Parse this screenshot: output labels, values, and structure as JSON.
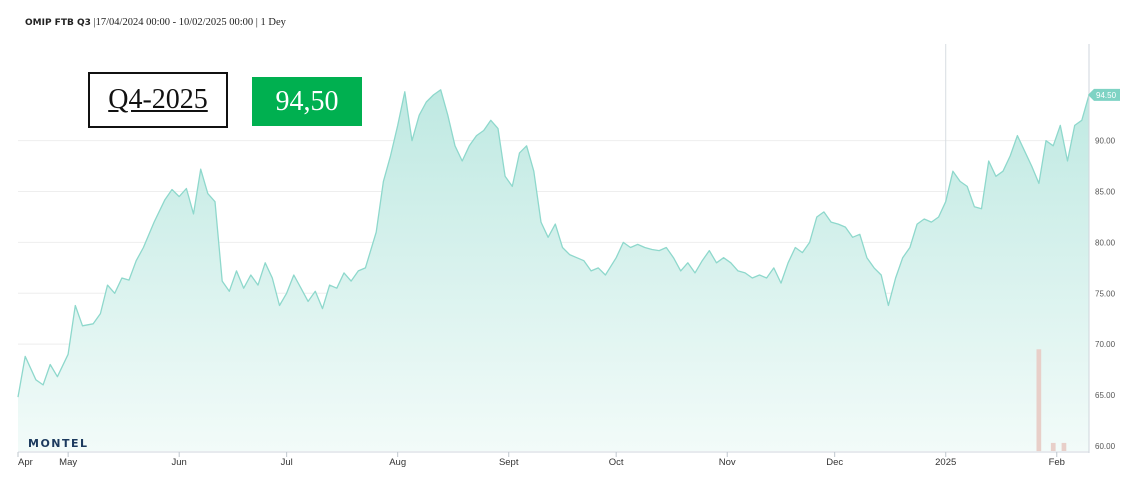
{
  "header": {
    "series": "OMIP FTB Q3",
    "range": "17/04/2024 00:00 - 10/02/2025 00:00",
    "interval": "1 Dey"
  },
  "overlay": {
    "contract": "Q4-2025",
    "price": "94,50"
  },
  "brand": "MONTEL",
  "colors": {
    "line": "#8ed8cc",
    "fill_top": "#bfe9e2",
    "fill_bottom": "#f2fbf9",
    "price_box": "#00b050",
    "last_label": "#7fd3c4",
    "volume_bars": "#e8cfc9"
  },
  "chart_data": {
    "type": "area",
    "title": "",
    "xlabel": "",
    "ylabel": "",
    "ylim": [
      59.5,
      99.5
    ],
    "y_ticks": [
      60,
      65,
      70,
      75,
      80,
      85,
      90
    ],
    "y_tick_labels": [
      "60.00",
      "65.00",
      "70.00",
      "75.00",
      "80.00",
      "85.00",
      "90.00"
    ],
    "x_range": [
      "2024-04-17",
      "2025-02-10"
    ],
    "x_ticks": [
      {
        "date": "2024-04-17",
        "label": "Apr"
      },
      {
        "date": "2024-05-01",
        "label": "May"
      },
      {
        "date": "2024-06-01",
        "label": "Jun"
      },
      {
        "date": "2024-07-01",
        "label": "Jul"
      },
      {
        "date": "2024-08-01",
        "label": "Aug"
      },
      {
        "date": "2024-09-01",
        "label": "Sept"
      },
      {
        "date": "2024-10-01",
        "label": "Oct"
      },
      {
        "date": "2024-11-01",
        "label": "Nov"
      },
      {
        "date": "2024-12-01",
        "label": "Dec"
      },
      {
        "date": "2025-01-01",
        "label": "2025"
      },
      {
        "date": "2025-02-01",
        "label": "Feb"
      }
    ],
    "grid": "horizontal",
    "last_value_label": "94.50",
    "series": [
      {
        "values": [
          [
            "2024-04-17",
            64.8
          ],
          [
            "2024-04-19",
            68.8
          ],
          [
            "2024-04-22",
            66.5
          ],
          [
            "2024-04-24",
            66.0
          ],
          [
            "2024-04-26",
            68.0
          ],
          [
            "2024-04-28",
            66.8
          ],
          [
            "2024-05-01",
            69.0
          ],
          [
            "2024-05-03",
            73.8
          ],
          [
            "2024-05-05",
            71.8
          ],
          [
            "2024-05-08",
            72.0
          ],
          [
            "2024-05-10",
            73.0
          ],
          [
            "2024-05-12",
            75.8
          ],
          [
            "2024-05-14",
            75.0
          ],
          [
            "2024-05-16",
            76.5
          ],
          [
            "2024-05-18",
            76.3
          ],
          [
            "2024-05-20",
            78.2
          ],
          [
            "2024-05-22",
            79.5
          ],
          [
            "2024-05-25",
            82.0
          ],
          [
            "2024-05-28",
            84.2
          ],
          [
            "2024-05-30",
            85.2
          ],
          [
            "2024-06-01",
            84.5
          ],
          [
            "2024-06-03",
            85.3
          ],
          [
            "2024-06-05",
            82.8
          ],
          [
            "2024-06-07",
            87.2
          ],
          [
            "2024-06-09",
            84.8
          ],
          [
            "2024-06-11",
            84.0
          ],
          [
            "2024-06-13",
            76.2
          ],
          [
            "2024-06-15",
            75.2
          ],
          [
            "2024-06-17",
            77.2
          ],
          [
            "2024-06-19",
            75.5
          ],
          [
            "2024-06-21",
            76.8
          ],
          [
            "2024-06-23",
            75.8
          ],
          [
            "2024-06-25",
            78.0
          ],
          [
            "2024-06-27",
            76.5
          ],
          [
            "2024-06-29",
            73.8
          ],
          [
            "2024-07-01",
            75.0
          ],
          [
            "2024-07-03",
            76.8
          ],
          [
            "2024-07-05",
            75.5
          ],
          [
            "2024-07-07",
            74.2
          ],
          [
            "2024-07-09",
            75.2
          ],
          [
            "2024-07-11",
            73.5
          ],
          [
            "2024-07-13",
            75.8
          ],
          [
            "2024-07-15",
            75.5
          ],
          [
            "2024-07-17",
            77.0
          ],
          [
            "2024-07-19",
            76.2
          ],
          [
            "2024-07-21",
            77.2
          ],
          [
            "2024-07-23",
            77.5
          ],
          [
            "2024-07-26",
            81.0
          ],
          [
            "2024-07-28",
            86.0
          ],
          [
            "2024-07-30",
            88.5
          ],
          [
            "2024-08-01",
            91.5
          ],
          [
            "2024-08-03",
            94.8
          ],
          [
            "2024-08-05",
            90.0
          ],
          [
            "2024-08-07",
            92.5
          ],
          [
            "2024-08-09",
            93.8
          ],
          [
            "2024-08-11",
            94.5
          ],
          [
            "2024-08-13",
            95.0
          ],
          [
            "2024-08-15",
            92.5
          ],
          [
            "2024-08-17",
            89.5
          ],
          [
            "2024-08-19",
            88.0
          ],
          [
            "2024-08-21",
            89.5
          ],
          [
            "2024-08-23",
            90.5
          ],
          [
            "2024-08-25",
            91.0
          ],
          [
            "2024-08-27",
            92.0
          ],
          [
            "2024-08-29",
            91.2
          ],
          [
            "2024-08-31",
            86.5
          ],
          [
            "2024-09-02",
            85.5
          ],
          [
            "2024-09-04",
            88.8
          ],
          [
            "2024-09-06",
            89.5
          ],
          [
            "2024-09-08",
            87.0
          ],
          [
            "2024-09-10",
            82.0
          ],
          [
            "2024-09-12",
            80.5
          ],
          [
            "2024-09-14",
            81.8
          ],
          [
            "2024-09-16",
            79.5
          ],
          [
            "2024-09-18",
            78.8
          ],
          [
            "2024-09-20",
            78.5
          ],
          [
            "2024-09-22",
            78.2
          ],
          [
            "2024-09-24",
            77.2
          ],
          [
            "2024-09-26",
            77.5
          ],
          [
            "2024-09-28",
            76.8
          ],
          [
            "2024-10-01",
            78.5
          ],
          [
            "2024-10-03",
            80.0
          ],
          [
            "2024-10-05",
            79.5
          ],
          [
            "2024-10-07",
            79.8
          ],
          [
            "2024-10-09",
            79.5
          ],
          [
            "2024-10-11",
            79.3
          ],
          [
            "2024-10-13",
            79.2
          ],
          [
            "2024-10-15",
            79.5
          ],
          [
            "2024-10-17",
            78.5
          ],
          [
            "2024-10-19",
            77.2
          ],
          [
            "2024-10-21",
            78.0
          ],
          [
            "2024-10-23",
            77.0
          ],
          [
            "2024-10-25",
            78.2
          ],
          [
            "2024-10-27",
            79.2
          ],
          [
            "2024-10-29",
            78.0
          ],
          [
            "2024-10-31",
            78.5
          ],
          [
            "2024-11-02",
            78.0
          ],
          [
            "2024-11-04",
            77.2
          ],
          [
            "2024-11-06",
            77.0
          ],
          [
            "2024-11-08",
            76.5
          ],
          [
            "2024-11-10",
            76.8
          ],
          [
            "2024-11-12",
            76.5
          ],
          [
            "2024-11-14",
            77.5
          ],
          [
            "2024-11-16",
            76.0
          ],
          [
            "2024-11-18",
            78.0
          ],
          [
            "2024-11-20",
            79.5
          ],
          [
            "2024-11-22",
            79.0
          ],
          [
            "2024-11-24",
            80.0
          ],
          [
            "2024-11-26",
            82.5
          ],
          [
            "2024-11-28",
            83.0
          ],
          [
            "2024-11-30",
            82.0
          ],
          [
            "2024-12-02",
            81.8
          ],
          [
            "2024-12-04",
            81.5
          ],
          [
            "2024-12-06",
            80.5
          ],
          [
            "2024-12-08",
            80.8
          ],
          [
            "2024-12-10",
            78.5
          ],
          [
            "2024-12-12",
            77.5
          ],
          [
            "2024-12-14",
            76.8
          ],
          [
            "2024-12-16",
            73.8
          ],
          [
            "2024-12-18",
            76.5
          ],
          [
            "2024-12-20",
            78.5
          ],
          [
            "2024-12-22",
            79.5
          ],
          [
            "2024-12-24",
            81.8
          ],
          [
            "2024-12-26",
            82.3
          ],
          [
            "2024-12-28",
            82.0
          ],
          [
            "2024-12-30",
            82.5
          ],
          [
            "2025-01-01",
            84.0
          ],
          [
            "2025-01-03",
            87.0
          ],
          [
            "2025-01-05",
            86.0
          ],
          [
            "2025-01-07",
            85.5
          ],
          [
            "2025-01-09",
            83.5
          ],
          [
            "2025-01-11",
            83.3
          ],
          [
            "2025-01-13",
            88.0
          ],
          [
            "2025-01-15",
            86.5
          ],
          [
            "2025-01-17",
            87.0
          ],
          [
            "2025-01-19",
            88.5
          ],
          [
            "2025-01-21",
            90.5
          ],
          [
            "2025-01-23",
            89.0
          ],
          [
            "2025-01-25",
            87.5
          ],
          [
            "2025-01-27",
            85.8
          ],
          [
            "2025-01-29",
            90.0
          ],
          [
            "2025-01-31",
            89.5
          ],
          [
            "2025-02-02",
            91.5
          ],
          [
            "2025-02-04",
            88.0
          ],
          [
            "2025-02-06",
            91.5
          ],
          [
            "2025-02-08",
            92.0
          ],
          [
            "2025-02-10",
            94.5
          ]
        ]
      }
    ],
    "volume": [
      {
        "date": "2025-01-27",
        "value": 69.5
      },
      {
        "date": "2025-01-31",
        "value": 60.3
      },
      {
        "date": "2025-02-03",
        "value": 60.3
      }
    ]
  }
}
